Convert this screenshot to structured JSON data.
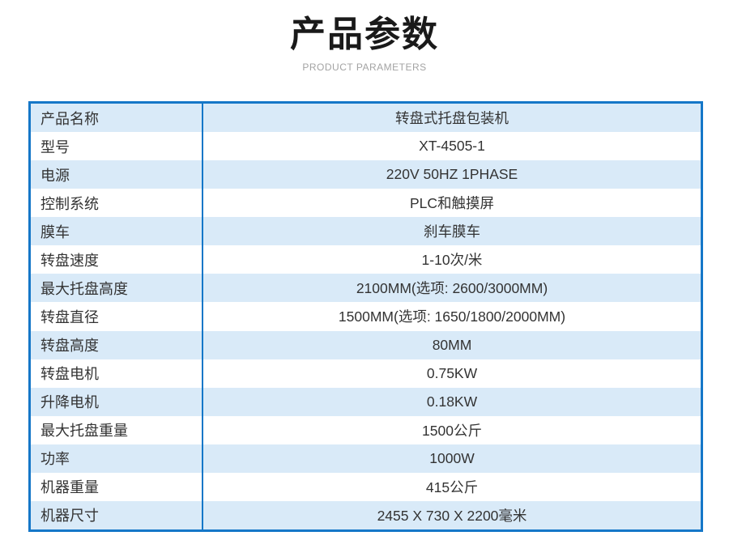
{
  "header": {
    "title": "产品参数",
    "subtitle": "PRODUCT PARAMETERS"
  },
  "table": {
    "rows": [
      {
        "label": "产品名称",
        "value": "转盘式托盘包装机"
      },
      {
        "label": "型号",
        "value": "XT-4505-1"
      },
      {
        "label": "电源",
        "value": "220V 50HZ 1PHASE"
      },
      {
        "label": "控制系统",
        "value": "PLC和触摸屏"
      },
      {
        "label": "膜车",
        "value": "刹车膜车"
      },
      {
        "label": "转盘速度",
        "value": "1-10次/米"
      },
      {
        "label": "最大托盘高度",
        "value": "2100MM(选项: 2600/3000MM)"
      },
      {
        "label": "转盘直径",
        "value": "1500MM(选项: 1650/1800/2000MM)"
      },
      {
        "label": "转盘高度",
        "value": "80MM"
      },
      {
        "label": "转盘电机",
        "value": "0.75KW"
      },
      {
        "label": "升降电机",
        "value": "0.18KW"
      },
      {
        "label": "最大托盘重量",
        "value": "1500公斤"
      },
      {
        "label": "功率",
        "value": "1000W"
      },
      {
        "label": "机器重量",
        "value": "415公斤"
      },
      {
        "label": "机器尺寸",
        "value": "2455 X 730 X 2200毫米"
      }
    ]
  },
  "colors": {
    "border_blue": "#1577c8",
    "row_alt_blue": "#d9eaf8",
    "title_black": "#1a1a1a",
    "subtitle_gray": "#a3a3a3",
    "text_dark": "#333333"
  }
}
